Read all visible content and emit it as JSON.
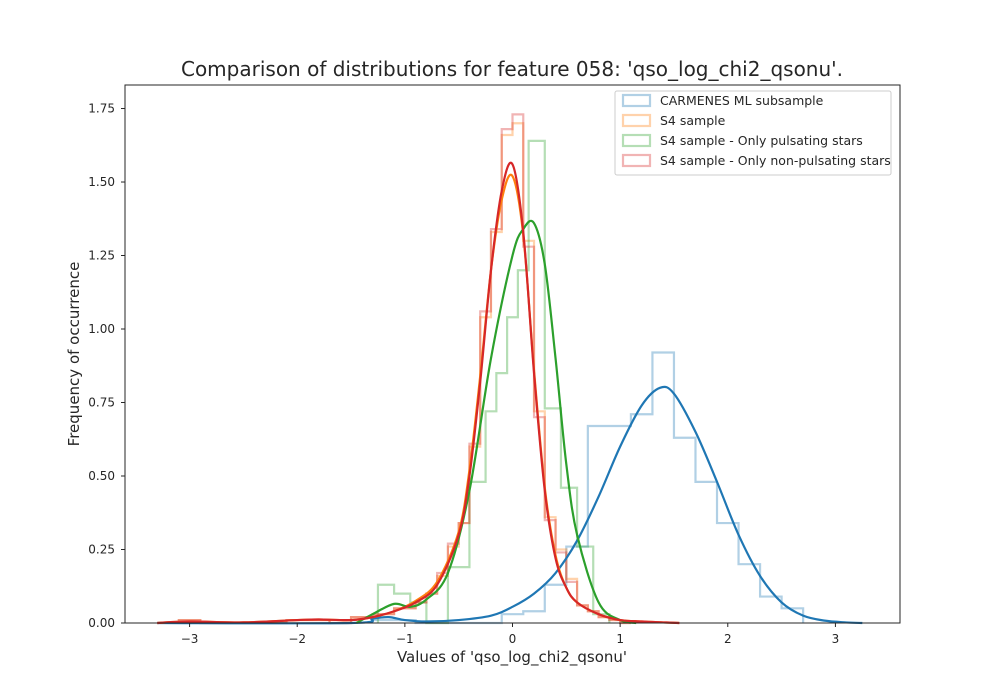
{
  "chart_data": {
    "type": "line",
    "title": "Comparison of distributions for feature 058: 'qso_log_chi2_qsonu'.",
    "xlabel": "Values of 'qso_log_chi2_qsonu'",
    "ylabel": "Frequency of occurrence",
    "xlim": [
      -3.6,
      3.6
    ],
    "ylim": [
      0,
      1.83
    ],
    "x_ticks": [
      -3,
      -2,
      -1,
      0,
      1,
      2,
      3
    ],
    "x_tick_labels": [
      "−3",
      "−2",
      "−1",
      "0",
      "1",
      "2",
      "3"
    ],
    "y_ticks": [
      0,
      0.25,
      0.5,
      0.75,
      1.0,
      1.25,
      1.5,
      1.75
    ],
    "y_tick_labels": [
      "0.00",
      "0.25",
      "0.50",
      "0.75",
      "1.00",
      "1.25",
      "1.50",
      "1.75"
    ],
    "grid": false,
    "legend_position": "top-right",
    "series": [
      {
        "name": "CARMENES ML subsample",
        "color": "#1f77b4",
        "hist_edges": [
          -1.3,
          -0.9,
          -0.5,
          -0.1,
          0.1,
          0.3,
          0.5,
          0.7,
          0.9,
          1.1,
          1.3,
          1.5,
          1.7,
          1.9,
          2.1,
          2.3,
          2.5,
          2.7
        ],
        "hist_values": [
          0.01,
          0.0,
          0.0,
          0.03,
          0.04,
          0.13,
          0.26,
          0.67,
          0.67,
          0.71,
          0.92,
          0.63,
          0.48,
          0.34,
          0.2,
          0.09,
          0.05
        ],
        "kde_x": [
          -3.3,
          -1.5,
          -1.3,
          -1.15,
          -1.0,
          -0.8,
          -0.5,
          -0.2,
          0.0,
          0.2,
          0.4,
          0.6,
          0.8,
          1.0,
          1.2,
          1.37,
          1.5,
          1.7,
          1.9,
          2.1,
          2.3,
          2.5,
          2.7,
          2.9,
          3.1,
          3.25
        ],
        "kde_y": [
          0.0,
          0.0,
          0.015,
          0.02,
          0.01,
          0.005,
          0.01,
          0.025,
          0.055,
          0.1,
          0.17,
          0.28,
          0.43,
          0.6,
          0.74,
          0.8,
          0.78,
          0.65,
          0.48,
          0.3,
          0.16,
          0.07,
          0.025,
          0.008,
          0.002,
          0.0
        ]
      },
      {
        "name": "S4 sample",
        "color": "#ff7f0e",
        "hist_edges": [
          -3.1,
          -2.9,
          -2.1,
          -1.9,
          -1.7,
          -1.5,
          -1.3,
          -1.1,
          -0.9,
          -0.8,
          -0.7,
          -0.6,
          -0.5,
          -0.4,
          -0.3,
          -0.2,
          -0.1,
          0.0,
          0.1,
          0.2,
          0.3,
          0.4,
          0.5,
          0.6,
          0.7,
          0.8,
          0.9,
          1.0,
          1.1
        ],
        "hist_values": [
          0.01,
          0.0,
          0.01,
          0.01,
          0.0,
          0.02,
          0.03,
          0.05,
          0.07,
          0.1,
          0.16,
          0.26,
          0.34,
          0.6,
          1.04,
          1.33,
          1.66,
          1.7,
          1.3,
          0.72,
          0.36,
          0.25,
          0.15,
          0.06,
          0.04,
          0.02,
          0.01,
          0.0
        ]
      },
      {
        "name": "S4 sample - Only pulsating stars",
        "color": "#2ca02c",
        "hist_edges": [
          -1.25,
          -1.1,
          -0.95,
          -0.8,
          -0.6,
          -0.4,
          -0.25,
          -0.15,
          -0.05,
          0.05,
          0.15,
          0.3,
          0.45,
          0.6,
          0.75,
          0.9
        ],
        "hist_values": [
          0.13,
          0.1,
          0.07,
          0.0,
          0.19,
          0.48,
          0.72,
          0.85,
          1.04,
          1.2,
          1.64,
          0.73,
          0.46,
          0.26,
          0.03
        ],
        "kde_x": [
          -1.45,
          -1.3,
          -1.1,
          -0.95,
          -0.8,
          -0.6,
          -0.4,
          -0.2,
          0.0,
          0.1,
          0.2,
          0.3,
          0.4,
          0.5,
          0.6,
          0.8,
          1.0,
          1.15
        ],
        "kde_y": [
          0.0,
          0.03,
          0.065,
          0.055,
          0.08,
          0.17,
          0.45,
          0.9,
          1.25,
          1.34,
          1.36,
          1.22,
          0.9,
          0.54,
          0.3,
          0.07,
          0.01,
          0.0
        ]
      },
      {
        "name": "S4 sample - Only non-pulsating stars",
        "color": "#d62728",
        "hist_edges": [
          -3.1,
          -2.9,
          -2.1,
          -1.9,
          -1.7,
          -1.5,
          -1.3,
          -1.1,
          -0.9,
          -0.8,
          -0.7,
          -0.6,
          -0.5,
          -0.4,
          -0.3,
          -0.2,
          -0.1,
          0.0,
          0.1,
          0.2,
          0.3,
          0.4,
          0.5,
          0.6,
          0.7,
          0.8,
          0.9,
          1.0,
          1.1
        ],
        "hist_values": [
          0.01,
          0.0,
          0.01,
          0.01,
          0.0,
          0.02,
          0.03,
          0.05,
          0.07,
          0.1,
          0.17,
          0.27,
          0.34,
          0.61,
          1.06,
          1.34,
          1.68,
          1.73,
          1.28,
          0.7,
          0.35,
          0.24,
          0.14,
          0.06,
          0.04,
          0.02,
          0.01,
          0.0
        ],
        "kde_x": [
          -3.3,
          -3.0,
          -2.5,
          -2.0,
          -1.8,
          -1.5,
          -1.3,
          -1.1,
          -0.9,
          -0.7,
          -0.5,
          -0.4,
          -0.3,
          -0.2,
          -0.1,
          0.0,
          0.1,
          0.2,
          0.3,
          0.4,
          0.5,
          0.6,
          0.8,
          1.0,
          1.2,
          1.4,
          1.55
        ],
        "kde_y": [
          0.0,
          0.005,
          0.002,
          0.01,
          0.012,
          0.01,
          0.02,
          0.04,
          0.07,
          0.13,
          0.3,
          0.5,
          0.82,
          1.2,
          1.47,
          1.56,
          1.33,
          0.85,
          0.45,
          0.22,
          0.12,
          0.07,
          0.03,
          0.01,
          0.005,
          0.002,
          0.0
        ]
      }
    ],
    "orange_kde": {
      "color": "#ff7f0e",
      "kde_x": [
        -3.3,
        -3.0,
        -2.5,
        -2.0,
        -1.8,
        -1.5,
        -1.3,
        -1.1,
        -0.9,
        -0.7,
        -0.5,
        -0.4,
        -0.3,
        -0.2,
        -0.1,
        0.0,
        0.1,
        0.2,
        0.3,
        0.4,
        0.5,
        0.6,
        0.8,
        1.0,
        1.2,
        1.4,
        1.55
      ],
      "kde_y": [
        0.0,
        0.005,
        0.002,
        0.01,
        0.012,
        0.01,
        0.02,
        0.04,
        0.075,
        0.14,
        0.31,
        0.52,
        0.84,
        1.2,
        1.44,
        1.52,
        1.32,
        0.86,
        0.46,
        0.23,
        0.12,
        0.07,
        0.03,
        0.01,
        0.005,
        0.002,
        0.0
      ]
    }
  }
}
